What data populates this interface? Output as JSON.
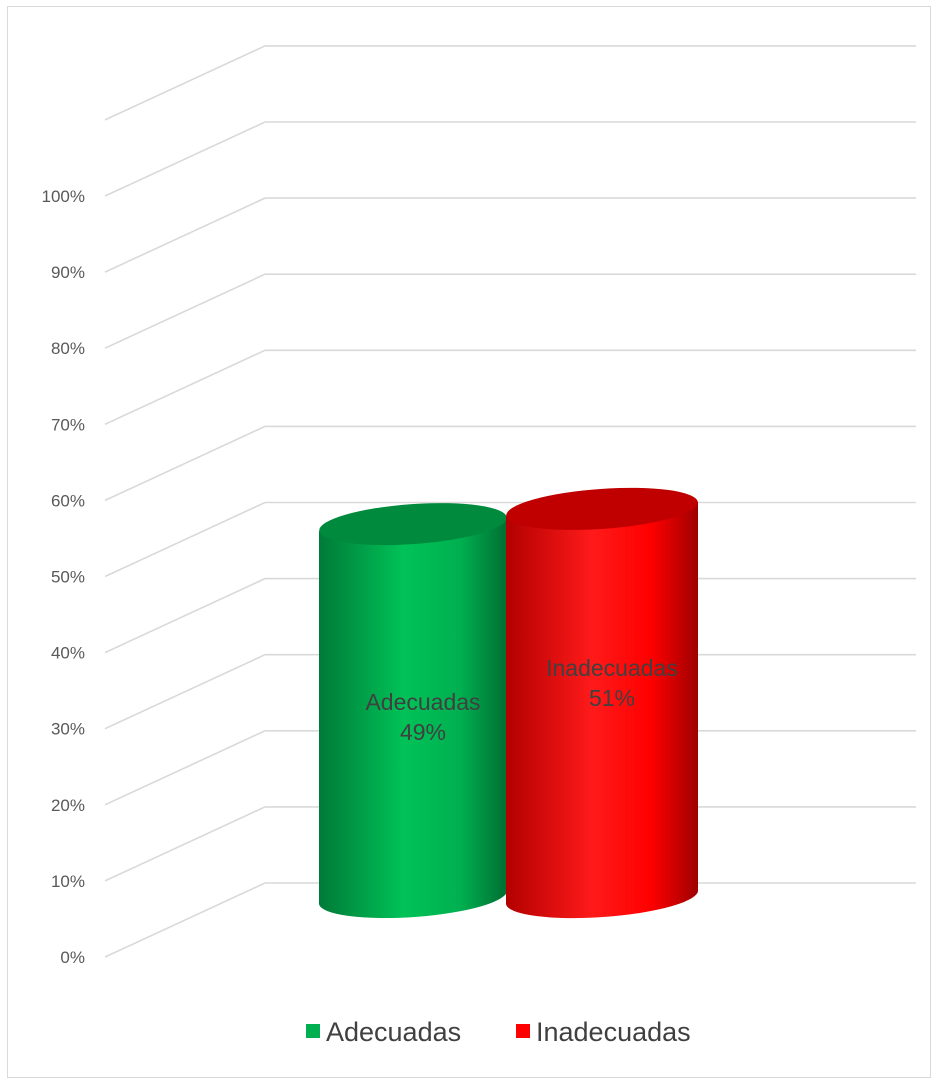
{
  "chart_data": {
    "type": "bar",
    "style": "3d-cylinder",
    "categories": [
      "Adecuadas",
      "Inadecuadas"
    ],
    "values": [
      49,
      51
    ],
    "value_labels": [
      "49%",
      "51%"
    ],
    "colors": [
      "#00b050",
      "#ff0000"
    ],
    "ylim": [
      0,
      100
    ],
    "yticks": [
      "0%",
      "10%",
      "20%",
      "30%",
      "40%",
      "50%",
      "60%",
      "70%",
      "80%",
      "90%",
      "100%"
    ],
    "legend": {
      "position": "bottom",
      "entries": [
        "Adecuadas",
        "Inadecuadas"
      ]
    },
    "grid": true
  }
}
